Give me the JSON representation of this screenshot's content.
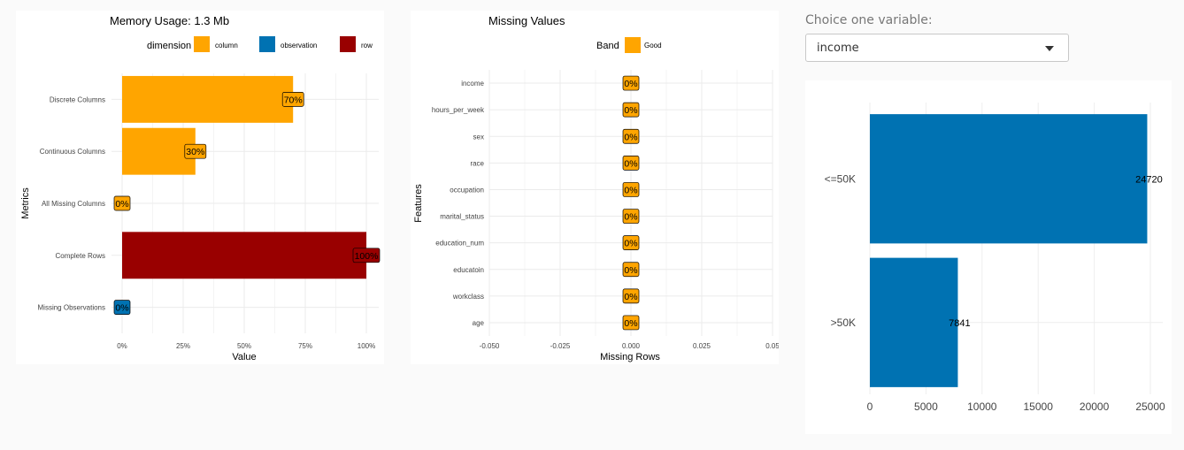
{
  "panels": {
    "memory": {
      "title": "Memory Usage: 1.3 Mb"
    },
    "missing": {
      "title": "Missing Values"
    },
    "income": {}
  },
  "control": {
    "label": "Choice one variable:",
    "selected": "income",
    "icon": "chevron-down-icon"
  },
  "colors": {
    "column": "#FFA500",
    "observation": "#0072B2",
    "row": "#990000",
    "good": "#FFA500",
    "income_bar": "#0072B2"
  },
  "chart_data": [
    {
      "type": "bar",
      "orientation": "horizontal",
      "title": "Memory Usage: 1.3 Mb",
      "xlabel": "Value",
      "ylabel": "Metrics",
      "legend_title": "dimension",
      "legend_position": "top",
      "categories": [
        "Discrete Columns",
        "Continuous Columns",
        "All Missing Columns",
        "Complete Rows",
        "Missing Observations"
      ],
      "values": [
        0.7,
        0.3,
        0,
        1,
        0
      ],
      "data_labels": [
        "70%",
        "30%",
        "0%",
        "100%",
        "0%"
      ],
      "dimension": [
        "column",
        "column",
        "column",
        "row",
        "observation"
      ],
      "legend": [
        "column",
        "observation",
        "row"
      ],
      "xticks": [
        "0%",
        "25%",
        "50%",
        "75%",
        "100%"
      ],
      "xlim": [
        0,
        1
      ],
      "grid": true
    },
    {
      "type": "bar",
      "orientation": "horizontal",
      "title": "Missing Values",
      "xlabel": "Missing Rows",
      "ylabel": "Features",
      "legend_title": "Band",
      "legend": [
        "Good"
      ],
      "legend_position": "top",
      "categories": [
        "income",
        "hours_per_week",
        "sex",
        "race",
        "occupation",
        "marital_status",
        "education_num",
        "educatoin",
        "workclass",
        "age"
      ],
      "values": [
        0,
        0,
        0,
        0,
        0,
        0,
        0,
        0,
        0,
        0
      ],
      "data_labels": [
        "0%",
        "0%",
        "0%",
        "0%",
        "0%",
        "0%",
        "0%",
        "0%",
        "0%",
        "0%"
      ],
      "xticks": [
        "-0.050",
        "-0.025",
        "0.000",
        "0.025",
        "0.05"
      ],
      "xlim": [
        -0.05,
        0.05
      ],
      "grid": true
    },
    {
      "type": "bar",
      "orientation": "horizontal",
      "categories": [
        "<=50K",
        ">50K"
      ],
      "values": [
        24720,
        7841
      ],
      "data_labels": [
        "24720",
        "7841"
      ],
      "xticks": [
        "0",
        "5000",
        "10000",
        "15000",
        "20000",
        "25000"
      ],
      "xlim": [
        0,
        25000
      ],
      "grid": true
    }
  ]
}
